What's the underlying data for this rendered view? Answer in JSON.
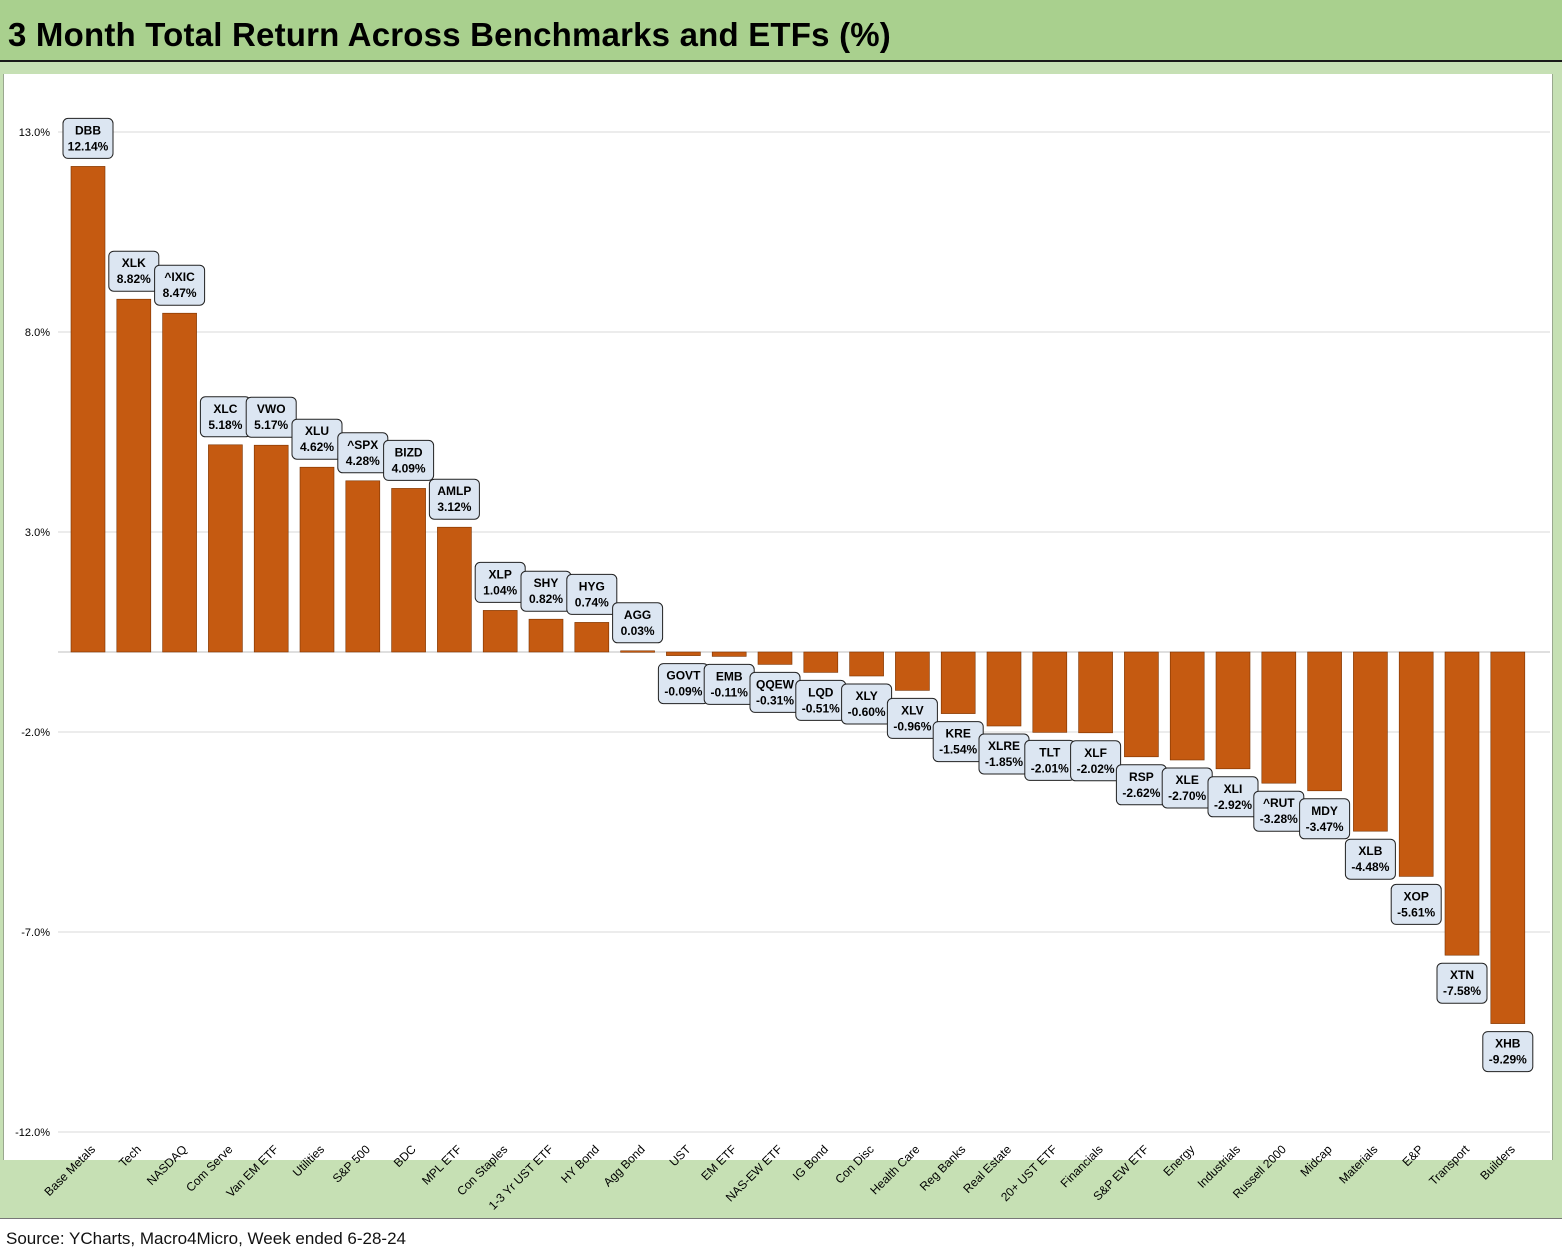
{
  "title": "3 Month Total Return Across Benchmarks and ETFs (%)",
  "source": "Source: YCharts, Macro4Micro, Week ended 6-28-24",
  "colors": {
    "bar": "#c55a11",
    "bar_stroke": "#7a3300",
    "label_fill": "#dce6f2",
    "label_stroke": "#222222",
    "header_green": "#a9d08e",
    "panel_green": "#c6e0b4",
    "grid": "#d9d9d9"
  },
  "chart_data": {
    "type": "bar",
    "title": "3 Month Total Return Across Benchmarks and ETFs (%)",
    "ylim": [
      -12.0,
      14.0
    ],
    "yticks": [
      13.0,
      8.0,
      3.0,
      -2.0,
      -7.0,
      -12.0
    ],
    "ytick_labels": [
      "13.0%",
      "8.0%",
      "3.0%",
      "-2.0%",
      "-7.0%",
      "-12.0%"
    ],
    "grid": true,
    "categories": [
      "Base Metals",
      "Tech",
      "NASDAQ",
      "Com Serve",
      "Van EM ETF",
      "Utilities",
      "S&P 500",
      "BDC",
      "MPL ETF",
      "Con Staples",
      "1-3 Yr UST ETF",
      "HY Bond",
      "Agg Bond",
      "UST",
      "EM ETF",
      "NAS-EW ETF",
      "IG Bond",
      "Con Disc",
      "Health Care",
      "Reg Banks",
      "Real Estate",
      "20+ UST ETF",
      "Financials",
      "S&P EW ETF",
      "Energy",
      "Industrials",
      "Russell 2000",
      "Midcap",
      "Materials",
      "E&P",
      "Transport",
      "Builders"
    ],
    "tickers": [
      "DBB",
      "XLK",
      "^IXIC",
      "XLC",
      "VWO",
      "XLU",
      "^SPX",
      "BIZD",
      "AMLP",
      "XLP",
      "SHY",
      "HYG",
      "AGG",
      "GOVT",
      "EMB",
      "QQEW",
      "LQD",
      "XLY",
      "XLV",
      "KRE",
      "XLRE",
      "TLT",
      "XLF",
      "RSP",
      "XLE",
      "XLI",
      "^RUT",
      "MDY",
      "XLB",
      "XOP",
      "XTN",
      "XHB"
    ],
    "value_labels": [
      "12.14%",
      "8.82%",
      "8.47%",
      "5.18%",
      "5.17%",
      "4.62%",
      "4.28%",
      "4.09%",
      "3.12%",
      "1.04%",
      "0.82%",
      "0.74%",
      "0.03%",
      "-0.09%",
      "-0.11%",
      "-0.31%",
      "-0.51%",
      "-0.60%",
      "-0.96%",
      "-1.54%",
      "-1.85%",
      "-2.01%",
      "-2.02%",
      "-2.62%",
      "-2.70%",
      "-2.92%",
      "-3.28%",
      "-3.47%",
      "-4.48%",
      "-5.61%",
      "-7.58%",
      "-9.29%"
    ],
    "values": [
      12.14,
      8.82,
      8.47,
      5.18,
      5.17,
      4.62,
      4.28,
      4.09,
      3.12,
      1.04,
      0.82,
      0.74,
      0.03,
      -0.09,
      -0.11,
      -0.31,
      -0.51,
      -0.6,
      -0.96,
      -1.54,
      -1.85,
      -2.01,
      -2.02,
      -2.62,
      -2.7,
      -2.92,
      -3.28,
      -3.47,
      -4.48,
      -5.61,
      -7.58,
      -9.29
    ]
  }
}
